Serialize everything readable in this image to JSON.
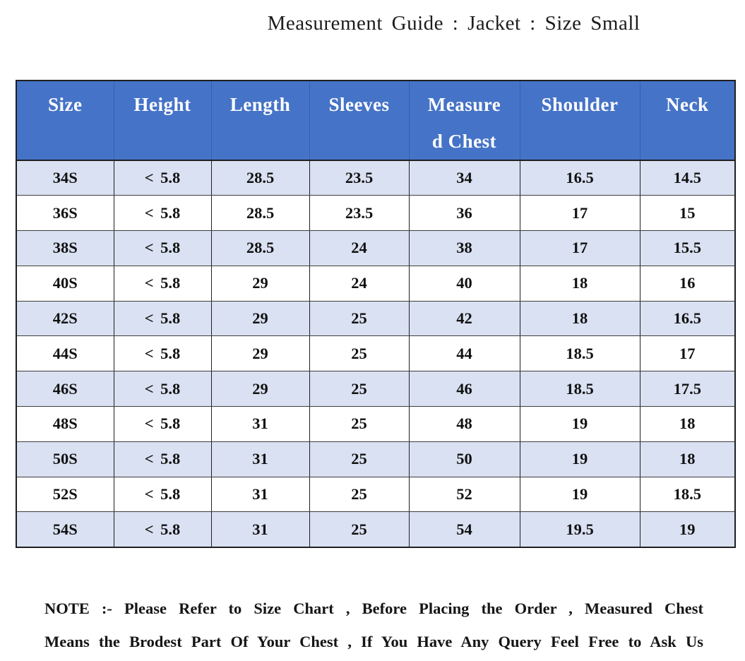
{
  "page": {
    "title": "Measurement Guide : Jacket : Size Small"
  },
  "chart_data": {
    "type": "table",
    "title": "Measurement Guide : Jacket : Size Small",
    "columns": [
      "Size",
      "Height",
      "Length",
      "Sleeves",
      "Measured Chest",
      "Shoulder",
      "Neck"
    ],
    "rows": [
      [
        "34S",
        "< 5.8",
        "28.5",
        "23.5",
        "34",
        "16.5",
        "14.5"
      ],
      [
        "36S",
        "< 5.8",
        "28.5",
        "23.5",
        "36",
        "17",
        "15"
      ],
      [
        "38S",
        "< 5.8",
        "28.5",
        "24",
        "38",
        "17",
        "15.5"
      ],
      [
        "40S",
        "< 5.8",
        "29",
        "24",
        "40",
        "18",
        "16"
      ],
      [
        "42S",
        "< 5.8",
        "29",
        "25",
        "42",
        "18",
        "16.5"
      ],
      [
        "44S",
        "< 5.8",
        "29",
        "25",
        "44",
        "18.5",
        "17"
      ],
      [
        "46S",
        "< 5.8",
        "29",
        "25",
        "46",
        "18.5",
        "17.5"
      ],
      [
        "48S",
        "< 5.8",
        "31",
        "25",
        "48",
        "19",
        "18"
      ],
      [
        "50S",
        "< 5.8",
        "31",
        "25",
        "50",
        "19",
        "18"
      ],
      [
        "52S",
        "< 5.8",
        "31",
        "25",
        "52",
        "19",
        "18.5"
      ],
      [
        "54S",
        "< 5.8",
        "31",
        "25",
        "54",
        "19.5",
        "19"
      ]
    ]
  },
  "table": {
    "header_display": [
      [
        "Size"
      ],
      [
        "Height"
      ],
      [
        "Length"
      ],
      [
        "Sleeves"
      ],
      [
        "Measure",
        "d  Chest"
      ],
      [
        "Shoulder"
      ],
      [
        "Neck"
      ]
    ],
    "striping": "first-row-shaded-then-alternating",
    "colors": {
      "header_bg": "#4573C7",
      "header_text": "#FFFFFF",
      "row_alt_bg": "#D9E1F2",
      "row_bg": "#FFFFFF",
      "border": "#1F1F1F",
      "cell_text": "#111111"
    }
  },
  "note": {
    "label": "NOTE :-",
    "line1": "NOTE :- Please Refer to Size Chart , Before Placing the Order , Measured Chest",
    "line2": "Means the Brodest Part Of Your Chest , If You Have Any Query Feel Free to Ask Us"
  }
}
